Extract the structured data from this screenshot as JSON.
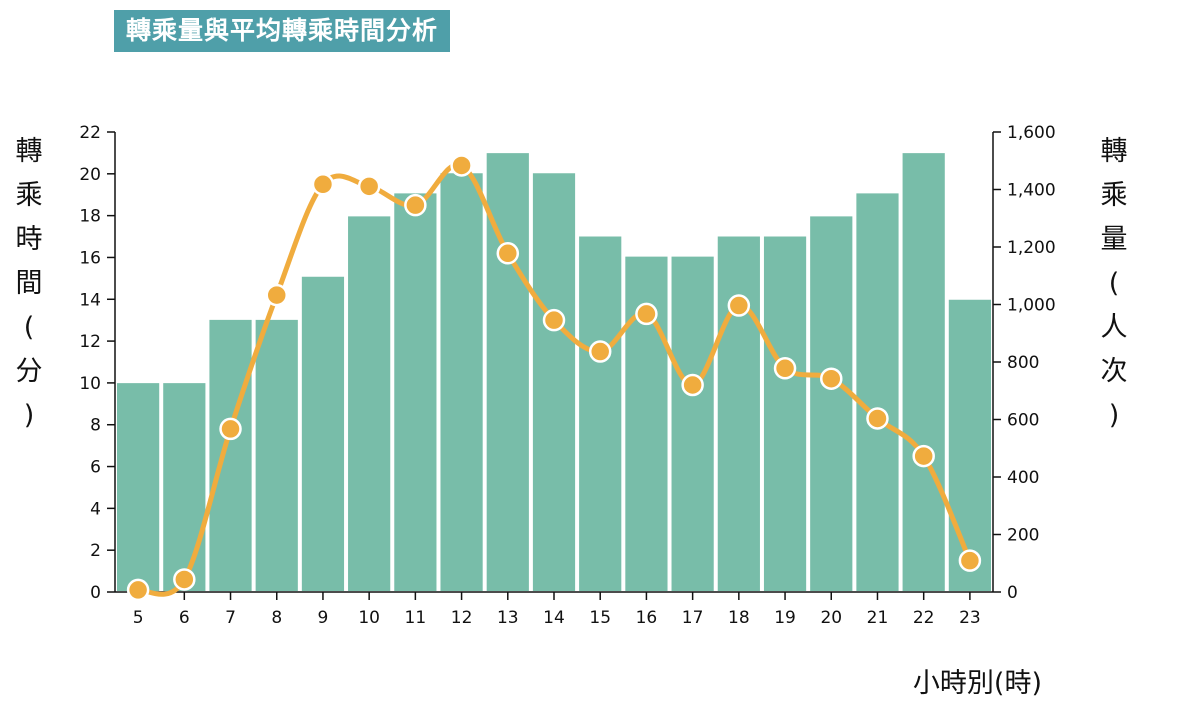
{
  "title": "轉乘量與平均轉乘時間分析",
  "chart_data": {
    "type": "bar",
    "categories": [
      "5",
      "6",
      "7",
      "8",
      "9",
      "10",
      "11",
      "12",
      "13",
      "14",
      "15",
      "16",
      "17",
      "18",
      "19",
      "20",
      "21",
      "22",
      "23"
    ],
    "series": [
      {
        "name": "轉乘時間(分)",
        "type": "line",
        "axis": "left",
        "values": [
          0.1,
          0.6,
          7.8,
          14.2,
          19.5,
          19.4,
          18.5,
          20.4,
          16.2,
          13.0,
          11.5,
          13.3,
          9.9,
          13.7,
          10.7,
          10.2,
          8.3,
          6.5,
          1.5
        ]
      },
      {
        "name": "轉乘量(人次)",
        "type": "bar",
        "axis": "right",
        "values": [
          730,
          730,
          950,
          950,
          1100,
          1310,
          1390,
          1460,
          1530,
          1460,
          1240,
          1170,
          1170,
          1240,
          1240,
          1310,
          1390,
          1530,
          1020
        ]
      }
    ],
    "y_left": {
      "label": "轉乘時間(分)",
      "ylim": [
        0,
        22
      ],
      "ticks": [
        "0",
        "2",
        "4",
        "6",
        "8",
        "10",
        "12",
        "14",
        "16",
        "18",
        "20",
        "22"
      ]
    },
    "y_right": {
      "label": "轉乘量(人次)",
      "ylim": [
        0,
        1600
      ],
      "ticks": [
        "0",
        "200",
        "400",
        "600",
        "800",
        "1,000",
        "1,200",
        "1,400",
        "1,600"
      ]
    },
    "xlabel": "小時別(時)",
    "colors": {
      "bar": "#78bda9",
      "line": "#f0ac3e",
      "title_bg": "#4f9fa9"
    }
  }
}
